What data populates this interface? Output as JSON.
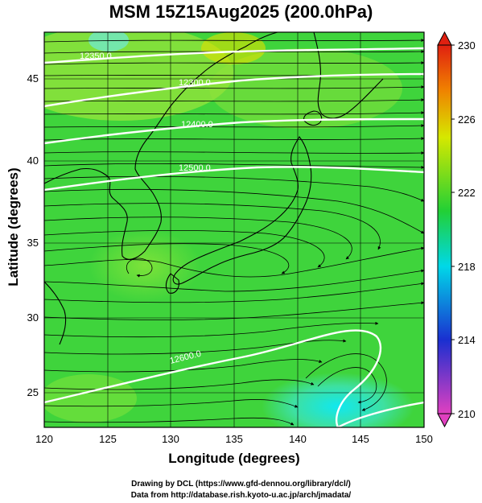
{
  "title": "MSM 15Z15Aug2025 (200.0hPa)",
  "chart_data": {
    "type": "heatmap",
    "title": "MSM 15Z15Aug2025 (200.0hPa)",
    "xlabel": "Longitude (degrees)",
    "ylabel": "Latitude  (degrees)",
    "xlim": [
      120,
      150
    ],
    "ylim": [
      22.4,
      47.6
    ],
    "x_ticks": [
      "120",
      "125",
      "130",
      "135",
      "140",
      "145",
      "150"
    ],
    "y_ticks": [
      "25",
      "30",
      "35",
      "40",
      "45"
    ],
    "colorbar": {
      "range": [
        210,
        230
      ],
      "ticks": [
        "210",
        "214",
        "218",
        "222",
        "226",
        "230"
      ],
      "colors": [
        "#e040c0",
        "#1a2fd0",
        "#00d8e8",
        "#22d035",
        "#d6e800",
        "#f08000",
        "#e02010"
      ]
    },
    "contours": [
      {
        "label": "12350.0",
        "lon": 123.0,
        "lat": 46.4
      },
      {
        "label": "12300.0",
        "lon": 131.0,
        "lat": 44.7
      },
      {
        "label": "12400.0",
        "lon": 131.2,
        "lat": 42.4
      },
      {
        "label": "12500.0",
        "lon": 131.4,
        "lat": 39.8
      },
      {
        "label": "12600.0",
        "lon": 130.8,
        "lat": 27.7
      }
    ],
    "grid": true
  },
  "credits": {
    "line1": "Drawing by DCL (https://www.gfd-dennou.org/library/dcl/)",
    "line2": "Data from http://database.rish.kyoto-u.ac.jp/arch/jmadata/"
  }
}
